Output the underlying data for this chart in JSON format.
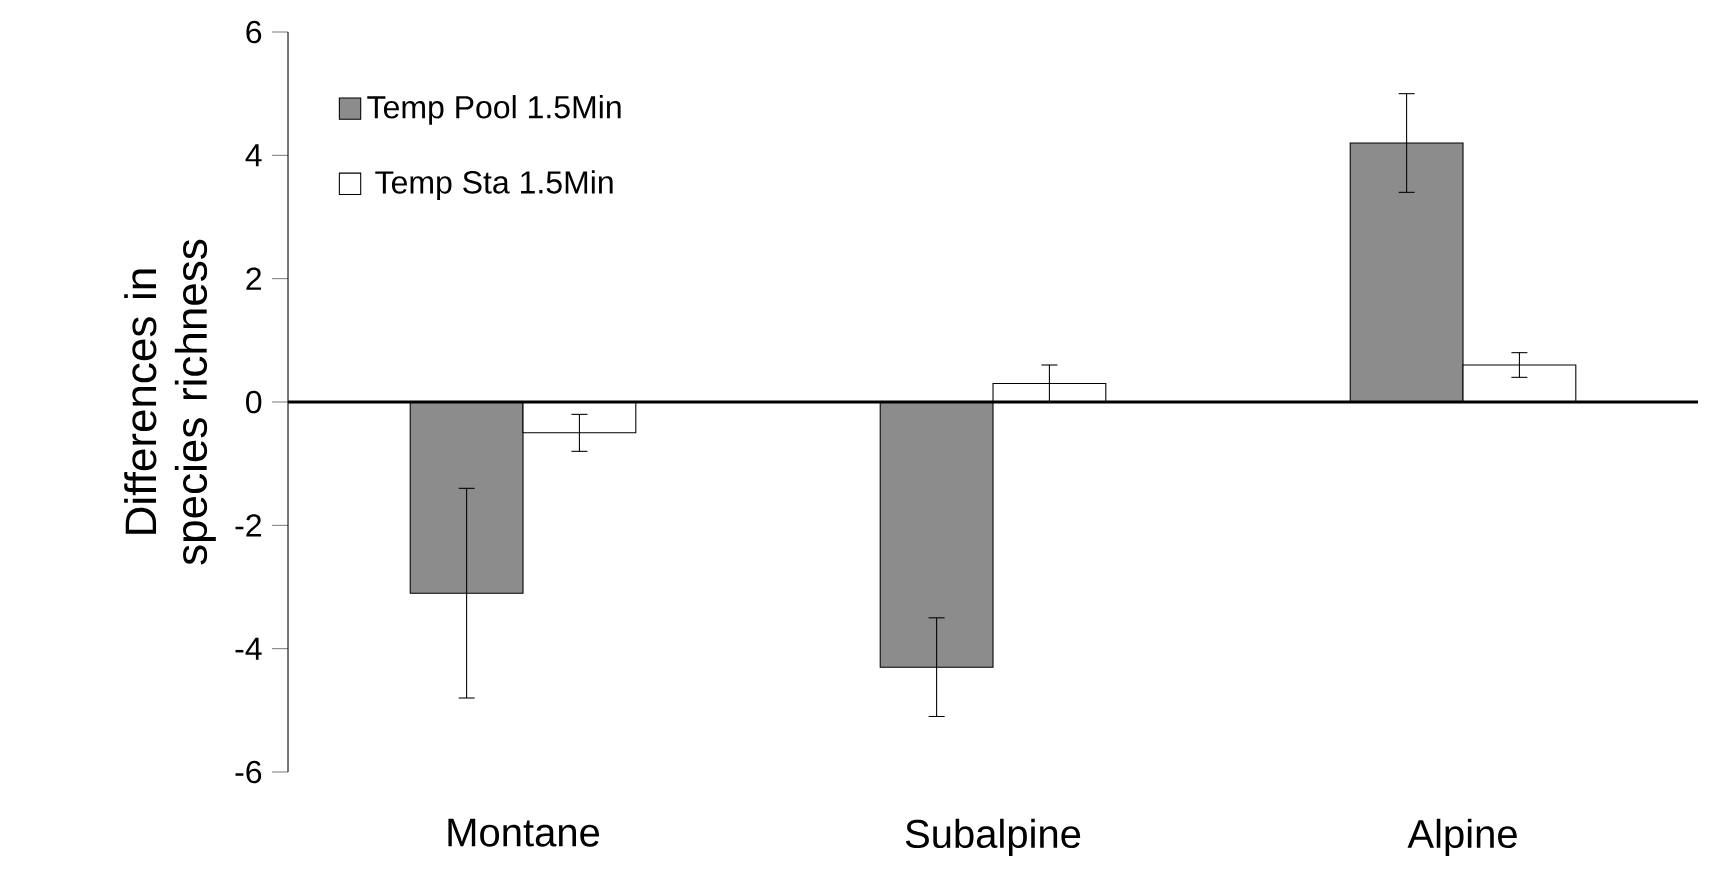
{
  "chart_data": {
    "type": "bar",
    "ylabel": "Differences in species richness",
    "categories": [
      "Montane",
      "Subalpine",
      "Alpine"
    ],
    "series": [
      {
        "name": "Temp Pool 1.5Min",
        "color": "#8c8c8c",
        "values": [
          -3.1,
          -4.3,
          4.2
        ],
        "errors": [
          1.7,
          0.8,
          0.8
        ]
      },
      {
        "name": "Temp Sta 1.5Min",
        "color": "#ffffff",
        "values": [
          -0.5,
          0.3,
          0.6
        ],
        "errors": [
          0.3,
          0.3,
          0.2
        ]
      }
    ],
    "ylim": [
      -6,
      6
    ],
    "yticks": [
      -6,
      -4,
      -2,
      0,
      2,
      4,
      6
    ],
    "legend": "top left"
  }
}
